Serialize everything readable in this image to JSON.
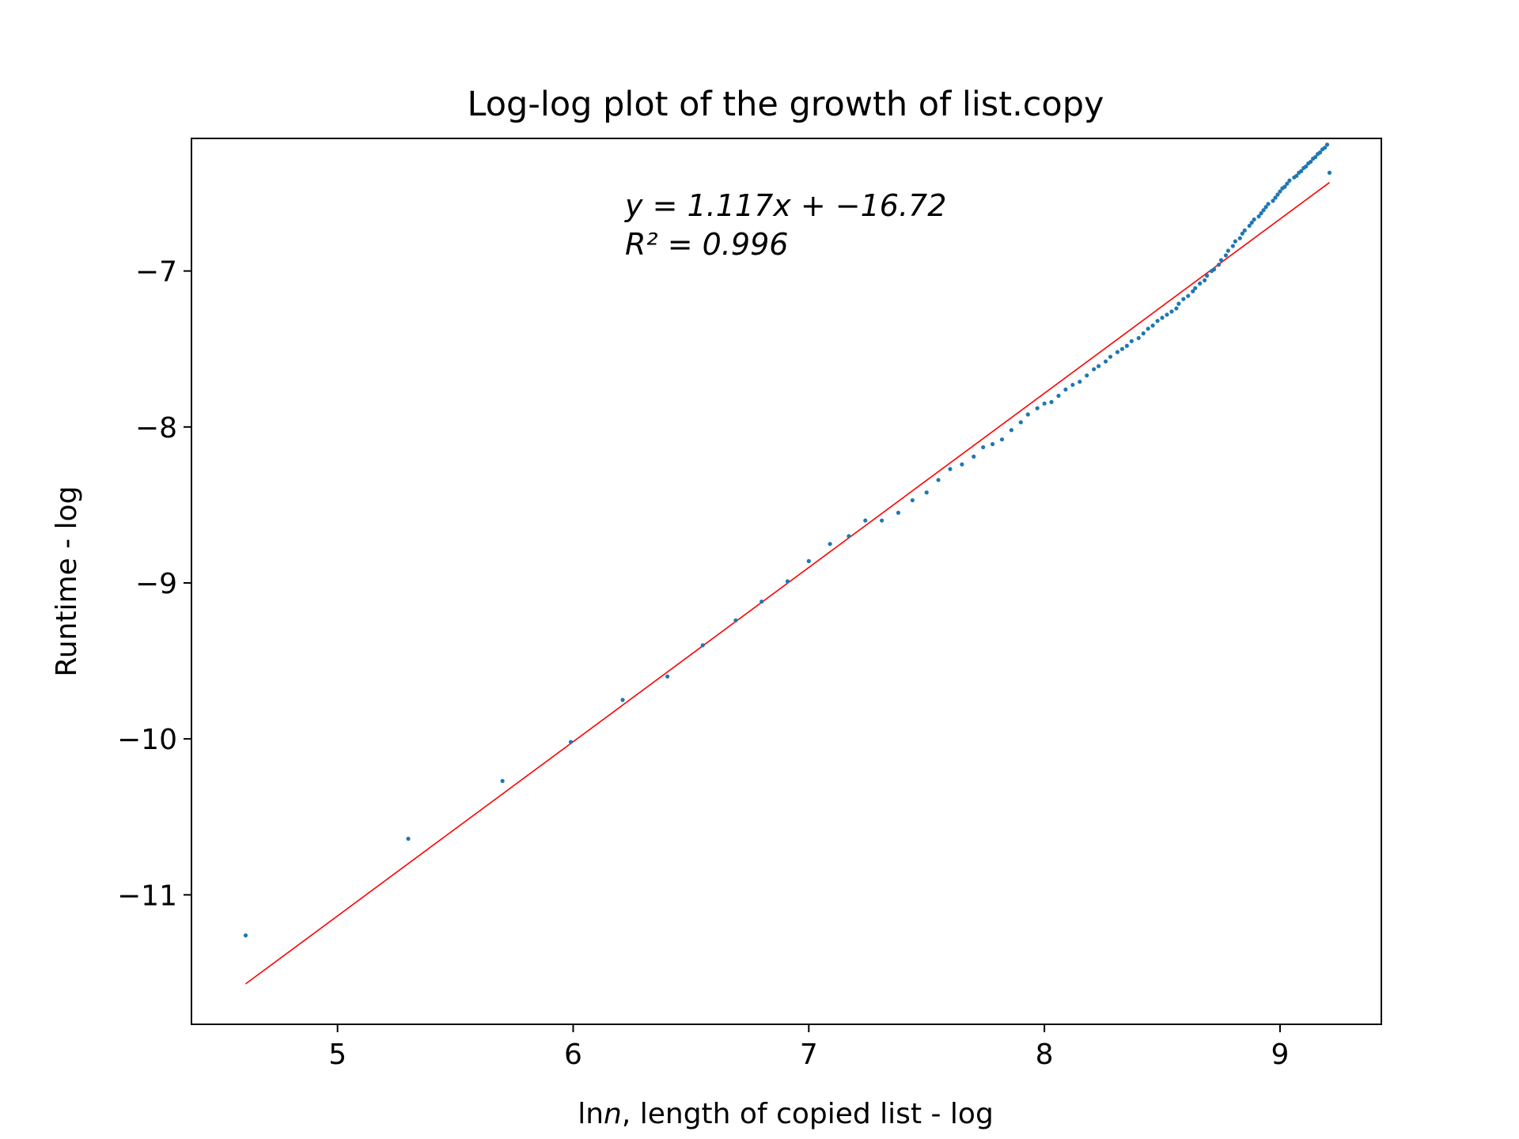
{
  "chart_data": {
    "type": "scatter",
    "title": "Log-log plot of the growth of list.copy",
    "xlabel_prefix": "ln",
    "xlabel_var": "n",
    "xlabel_suffix": ", length of copied list - log",
    "ylabel": "Runtime - log",
    "xlim": [
      4.38,
      9.43
    ],
    "ylim": [
      -11.83,
      -6.15
    ],
    "xticks": [
      5,
      6,
      7,
      8,
      9
    ],
    "xtick_labels": [
      "5",
      "6",
      "7",
      "8",
      "9"
    ],
    "yticks": [
      -11,
      -10,
      -9,
      -8,
      -7
    ],
    "ytick_labels": [
      "−11",
      "−10",
      "−9",
      "−8",
      "−7"
    ],
    "grid": false,
    "annotation": {
      "line1": "y = 1.117x + −16.72",
      "line2": "R² = 0.996"
    },
    "fit": {
      "slope": 1.117,
      "intercept": -16.72,
      "x_range": [
        4.61,
        9.21
      ],
      "color": "#ff0000"
    },
    "marker_color": "#1f77b4",
    "series": [
      {
        "x": [
          4.61,
          5.3,
          5.7,
          5.99,
          6.21,
          6.4,
          6.55,
          6.69,
          6.8,
          6.91,
          7.0,
          7.09,
          7.17,
          7.24,
          7.31,
          7.38,
          7.44,
          7.5,
          7.55,
          7.6,
          7.65,
          7.7,
          7.74,
          7.78,
          7.82,
          7.86,
          7.9,
          7.93,
          7.97,
          8.0,
          8.03,
          8.06,
          8.09,
          8.12,
          8.15,
          8.18,
          8.21,
          8.23,
          8.26,
          8.28,
          8.31,
          8.33,
          8.35,
          8.37,
          8.4,
          8.42,
          8.44,
          8.46,
          8.48,
          8.5,
          8.52,
          8.54,
          8.56,
          8.57,
          8.59,
          8.61,
          8.63,
          8.64,
          8.66,
          8.68,
          8.69,
          8.71,
          8.72,
          8.74,
          8.75,
          8.77,
          8.78,
          8.8,
          8.81,
          8.83,
          8.84,
          8.85,
          8.87,
          8.88,
          8.89,
          8.91,
          8.92,
          8.93,
          8.94,
          8.95,
          8.97,
          8.98,
          8.99,
          9.0,
          9.01,
          9.02,
          9.03,
          9.04,
          9.06,
          9.07,
          9.08,
          9.09,
          9.1,
          9.11,
          9.12,
          9.13,
          9.14,
          9.15,
          9.16,
          9.17,
          9.18,
          9.19,
          9.2,
          9.21
        ],
        "y": [
          -11.26,
          -10.64,
          -10.27,
          -10.02,
          -9.75,
          -9.6,
          -9.4,
          -9.24,
          -9.12,
          -8.99,
          -8.86,
          -8.75,
          -8.7,
          -8.6,
          -8.6,
          -8.55,
          -8.47,
          -8.42,
          -8.34,
          -8.27,
          -8.24,
          -8.19,
          -8.13,
          -8.11,
          -8.08,
          -8.02,
          -7.97,
          -7.92,
          -7.88,
          -7.85,
          -7.84,
          -7.8,
          -7.76,
          -7.73,
          -7.71,
          -7.67,
          -7.63,
          -7.61,
          -7.58,
          -7.55,
          -7.52,
          -7.5,
          -7.48,
          -7.45,
          -7.43,
          -7.4,
          -7.37,
          -7.35,
          -7.32,
          -7.3,
          -7.28,
          -7.26,
          -7.24,
          -7.21,
          -7.18,
          -7.16,
          -7.13,
          -7.11,
          -7.08,
          -7.06,
          -7.03,
          -7.0,
          -6.99,
          -6.96,
          -6.93,
          -6.9,
          -6.87,
          -6.84,
          -6.81,
          -6.79,
          -6.76,
          -6.74,
          -6.71,
          -6.69,
          -6.67,
          -6.65,
          -6.63,
          -6.61,
          -6.59,
          -6.57,
          -6.55,
          -6.53,
          -6.51,
          -6.49,
          -6.47,
          -6.46,
          -6.44,
          -6.42,
          -6.4,
          -6.39,
          -6.37,
          -6.36,
          -6.34,
          -6.33,
          -6.31,
          -6.3,
          -6.28,
          -6.27,
          -6.25,
          -6.24,
          -6.22,
          -6.21,
          -6.19,
          -6.37
        ]
      }
    ]
  }
}
